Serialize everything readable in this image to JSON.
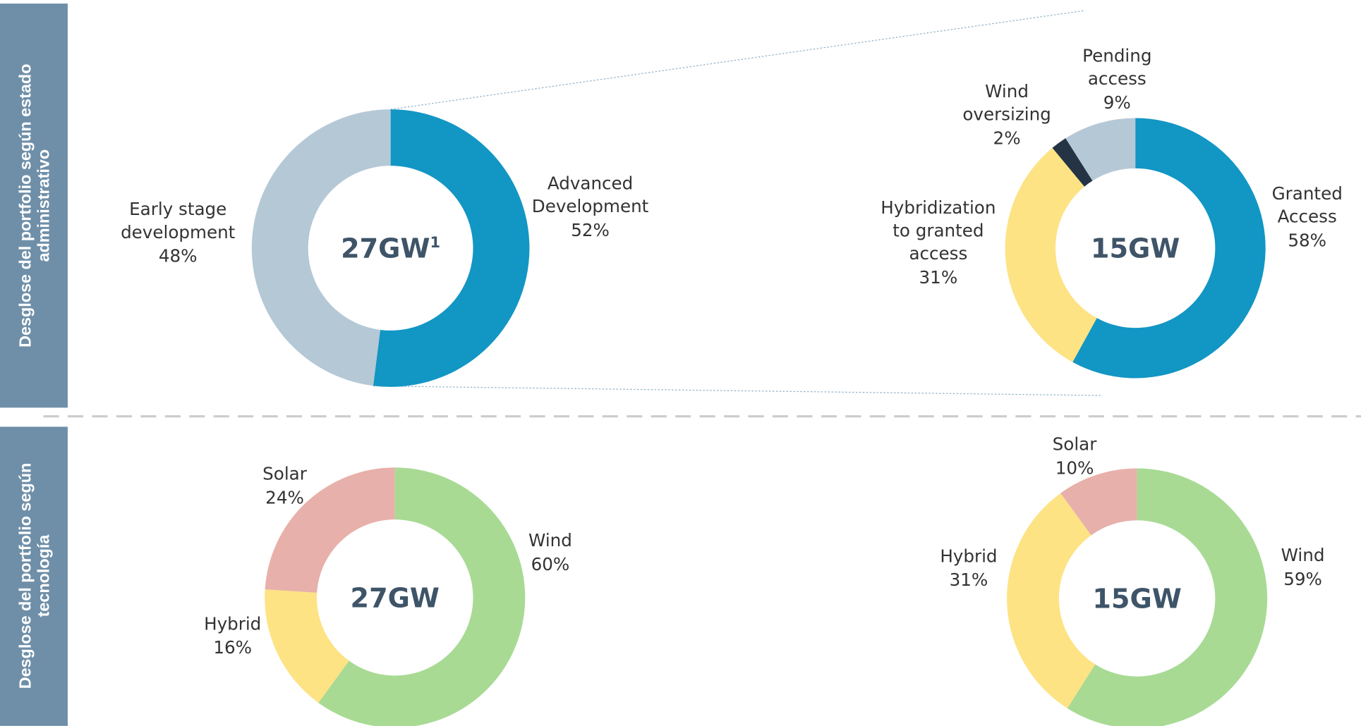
{
  "sections": [
    [
      "Desglose del portfolio según estado",
      "administrativo"
    ],
    [
      "Desglose del portfolio según",
      "tecnología"
    ]
  ],
  "chart_data": [
    {
      "type": "pie",
      "center_label": "27GW",
      "center_note": "1",
      "categories": [
        "Advanced\nDevelopment",
        "Early stage\ndevelopment"
      ],
      "values": [
        52,
        48
      ],
      "value_labels": [
        "52%",
        "48%"
      ],
      "colors": [
        "#1296c4",
        "#b5c8d6"
      ]
    },
    {
      "type": "pie",
      "center_label": "15GW",
      "categories": [
        "Granted\nAccess",
        "Hybridization\nto granted\naccess",
        "Wind\noversizing",
        "Pending\naccess"
      ],
      "values": [
        58,
        31,
        2,
        9
      ],
      "value_labels": [
        "58%",
        "31%",
        "2%",
        "9%"
      ],
      "colors": [
        "#1296c4",
        "#fde384",
        "#253444",
        "#b5c8d6"
      ]
    },
    {
      "type": "pie",
      "center_label": "27GW",
      "categories": [
        "Wind",
        "Hybrid",
        "Solar"
      ],
      "values": [
        60,
        16,
        24
      ],
      "value_labels": [
        "60%",
        "16%",
        "24%"
      ],
      "colors": [
        "#a8da94",
        "#fde384",
        "#e8b0aa"
      ]
    },
    {
      "type": "pie",
      "center_label": "15GW",
      "categories": [
        "Wind",
        "Hybrid",
        "Solar"
      ],
      "values": [
        59,
        31,
        10
      ],
      "value_labels": [
        "59%",
        "31%",
        "10%"
      ],
      "colors": [
        "#a8da94",
        "#fde384",
        "#e8b0aa"
      ]
    }
  ]
}
